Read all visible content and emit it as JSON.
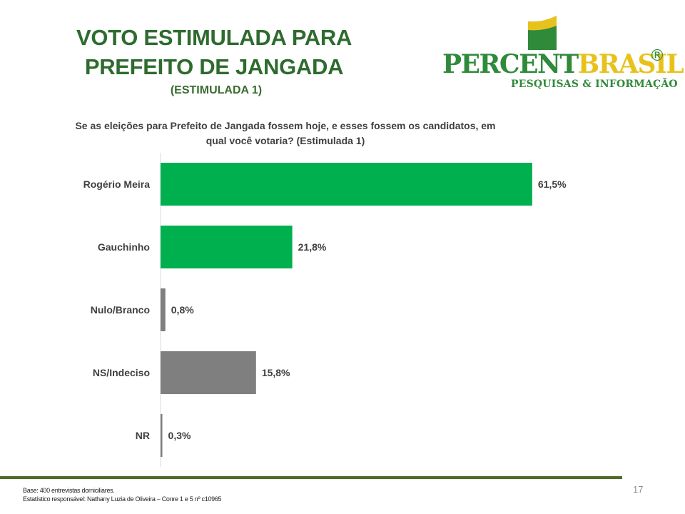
{
  "slide": {
    "title_line1": "VOTO ESTIMULADA PARA",
    "title_line2": "PREFEITO DE JANGADA",
    "subtitle": "(ESTIMULADA 1)",
    "question": "Se as eleições para Prefeito de Jangada fossem hoje, e esses fossem os candidatos, em qual você votaria? (Estimulada 1)",
    "footer_line1": "Base: 400 entrevistas domiciliares.",
    "footer_line2": "Estatístico responsável: Nathany Luzia de Oliveira – Conre 1 e 5 nº c10965",
    "page_number": "17"
  },
  "logo": {
    "word_part1": "PERCENT",
    "word_part2": "BRASIL",
    "registered": "®",
    "tagline": "PESQUISAS & INFORMAÇÃO"
  },
  "colors": {
    "title": "#2e6b2e",
    "candidate_bar": "#00b04f",
    "other_bar": "#7f7f7f",
    "rule": "#4e6b2a"
  },
  "chart_data": {
    "type": "bar",
    "orientation": "horizontal",
    "categories": [
      "Rogério Meira",
      "Gauchinho",
      "Nulo/Branco",
      "NS/Indeciso",
      "NR"
    ],
    "values": [
      61.5,
      21.8,
      0.8,
      15.8,
      0.3
    ],
    "value_labels": [
      "61,5%",
      "21,8%",
      "0,8%",
      "15,8%",
      "0,3%"
    ],
    "bar_colors": [
      "#00b04f",
      "#00b04f",
      "#7f7f7f",
      "#7f7f7f",
      "#7f7f7f"
    ],
    "unit": "%",
    "xlim": [
      0,
      100
    ],
    "grid": false,
    "legend": "none"
  }
}
